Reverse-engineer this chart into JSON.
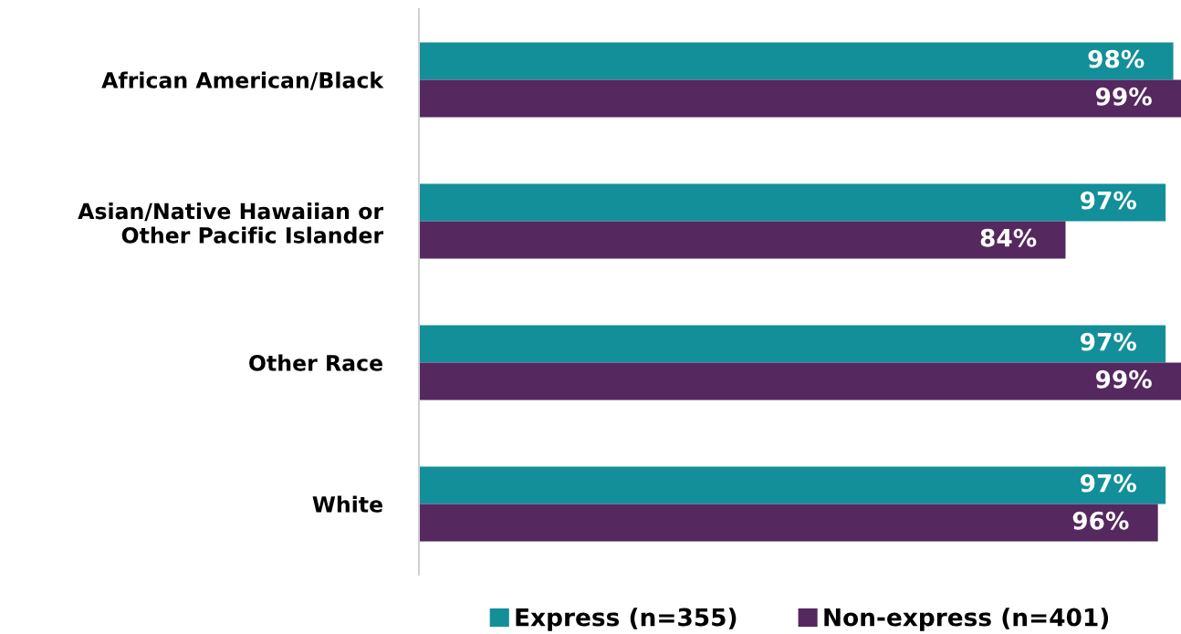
{
  "chart_data": {
    "type": "bar",
    "orientation": "horizontal",
    "categories": [
      "African American/Black",
      "Asian/Native Hawaiian or\nOther Pacific Islander",
      "Other Race",
      "White"
    ],
    "series": [
      {
        "name": "Express (n=355)",
        "color": "#138f99",
        "values": [
          98,
          97,
          97,
          97
        ],
        "value_labels": [
          "98%",
          "97%",
          "97%",
          "97%"
        ]
      },
      {
        "name": "Non-express (n=401)",
        "color": "#55285f",
        "values": [
          99,
          84,
          99,
          96
        ],
        "value_labels": [
          "99%",
          "84%",
          "99%",
          "96%"
        ]
      }
    ],
    "xlim": [
      0,
      99
    ],
    "tick_labels": "y",
    "grid": false,
    "legend": "bottom"
  }
}
